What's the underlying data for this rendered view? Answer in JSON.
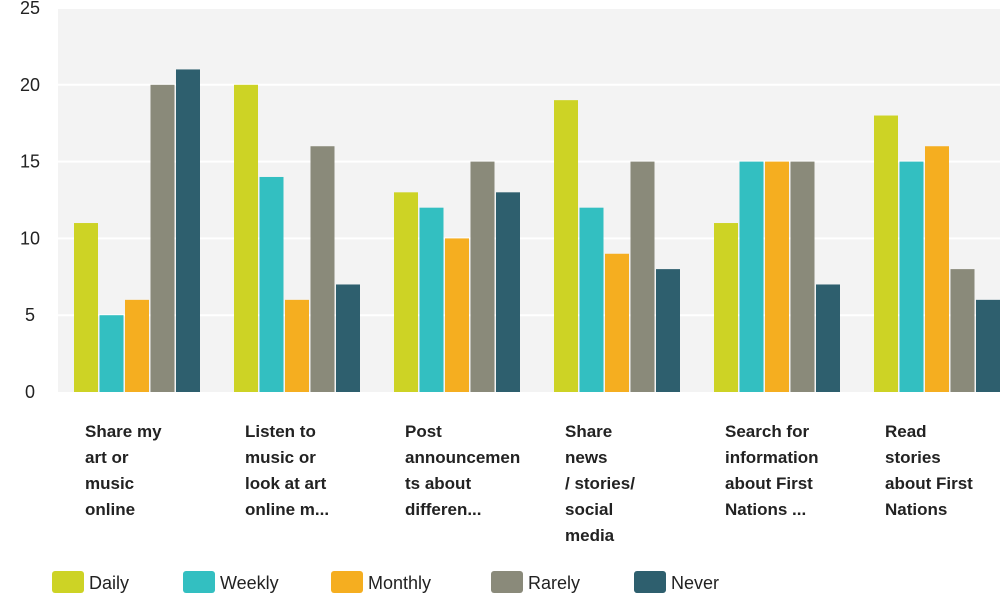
{
  "chart_data": {
    "type": "bar",
    "title": "",
    "xlabel": "",
    "ylabel": "",
    "ylim": [
      0,
      25
    ],
    "yticks": [
      0,
      5,
      10,
      15,
      20,
      25
    ],
    "grid": true,
    "legend_position": "bottom",
    "categories": [
      [
        "Share my",
        "art or",
        "music",
        "online"
      ],
      [
        "Listen to",
        "music or",
        "look at art",
        "online m..."
      ],
      [
        "Post",
        "announcemen",
        "ts about",
        "differen..."
      ],
      [
        "Share",
        "news",
        "/ stories/",
        "social",
        "media"
      ],
      [
        "Search for",
        "information",
        "about First",
        "Nations ..."
      ],
      [
        "Read",
        "stories",
        "about First",
        "Nations"
      ]
    ],
    "series": [
      {
        "name": "Daily",
        "color": "#cdd325",
        "values": [
          11,
          20,
          13,
          19,
          11,
          18
        ]
      },
      {
        "name": "Weekly",
        "color": "#33bfc1",
        "values": [
          5,
          14,
          12,
          12,
          15,
          15
        ]
      },
      {
        "name": "Monthly",
        "color": "#f5ae20",
        "values": [
          6,
          6,
          10,
          9,
          15,
          16
        ]
      },
      {
        "name": "Rarely",
        "color": "#8a8a7a",
        "values": [
          20,
          16,
          15,
          15,
          15,
          8
        ]
      },
      {
        "name": "Never",
        "color": "#2e5f6e",
        "values": [
          21,
          7,
          13,
          8,
          7,
          6
        ]
      }
    ]
  }
}
